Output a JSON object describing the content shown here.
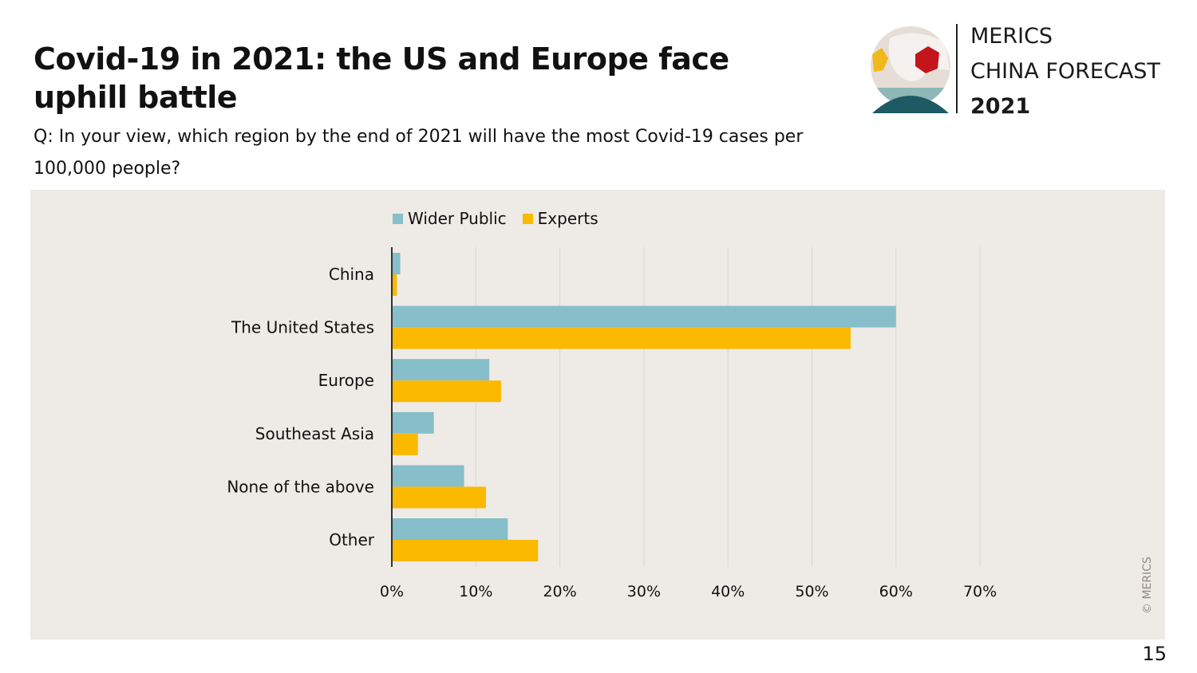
{
  "header": {
    "title": "Covid-19 in 2021: the US and Europe face uphill battle",
    "subtitle": "Q: In your view, which region by the end of 2021 will have the most Covid-19 cases per 100,000 people?"
  },
  "logo": {
    "line1": "MERICS",
    "line2": "CHINA FORECAST",
    "line3": "2021",
    "icon": "globe-icon"
  },
  "chart_data": {
    "type": "bar",
    "orientation": "horizontal",
    "title": "Covid-19 in 2021: the US and Europe face uphill battle",
    "xlabel": "",
    "ylabel": "",
    "categories": [
      "China",
      "The United States",
      "Europe",
      "Southeast Asia",
      "None of the above",
      "Other"
    ],
    "series": [
      {
        "name": "Wider Public",
        "color": "#86bfc9",
        "values": [
          1.0,
          60.0,
          11.6,
          5.0,
          8.6,
          13.8
        ]
      },
      {
        "name": "Experts",
        "color": "#fbb900",
        "values": [
          0.6,
          54.6,
          13.0,
          3.1,
          11.2,
          17.4
        ]
      }
    ],
    "xlim": [
      0,
      70
    ],
    "xticks": [
      0,
      10,
      20,
      30,
      40,
      50,
      60,
      70
    ],
    "xtick_labels": [
      "0%",
      "10%",
      "20%",
      "30%",
      "40%",
      "50%",
      "60%",
      "70%"
    ],
    "grid": true,
    "legend_position": "top"
  },
  "footer": {
    "copyright": "© MERICS",
    "page_number": "15"
  }
}
